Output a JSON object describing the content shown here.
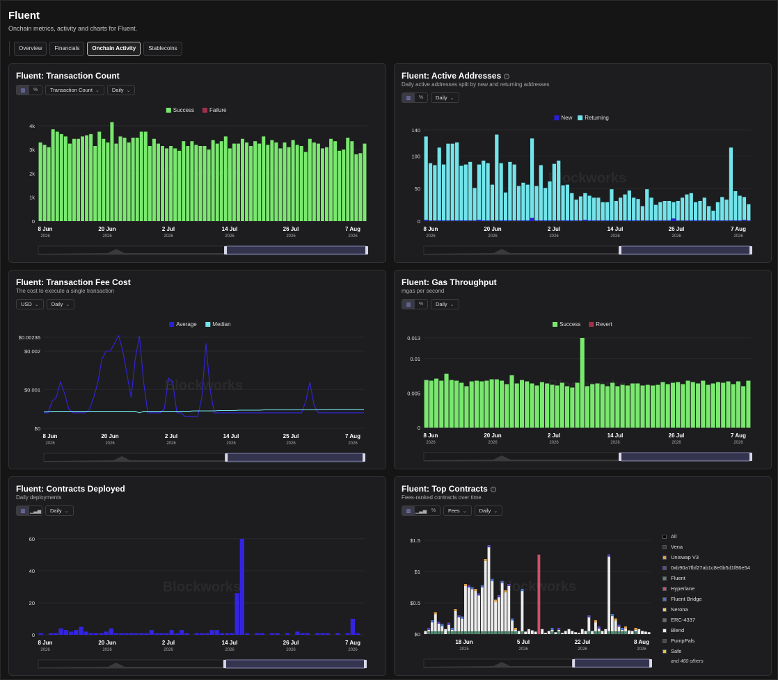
{
  "page": {
    "title": "Fluent",
    "subtitle": "Onchain metrics, activity and charts for Fluent."
  },
  "tabs": [
    "Overview",
    "Financials",
    "Onchain Activity",
    "Stablecoins"
  ],
  "active_tab": "Onchain Activity",
  "watermark": "Blockworks",
  "charts": {
    "tx_count": {
      "title": "Fluent: Transaction Count",
      "dropdowns": [
        "Transaction Count",
        "Daily"
      ],
      "legend": [
        {
          "label": "Success",
          "color": "#7ae86f"
        },
        {
          "label": "Failure",
          "color": "#a12f4a"
        }
      ],
      "y_ticks": [
        "0",
        "1k",
        "2k",
        "3k",
        "4k"
      ],
      "x_ticks": [
        {
          "d": "8 Jun",
          "y": "2026"
        },
        {
          "d": "20 Jun",
          "y": "2026"
        },
        {
          "d": "2 Jul",
          "y": "2026"
        },
        {
          "d": "14 Jul",
          "y": "2026"
        },
        {
          "d": "26 Jul",
          "y": "2026"
        },
        {
          "d": "7 Aug",
          "y": "2026"
        }
      ]
    },
    "active_addresses": {
      "title": "Fluent: Active Addresses",
      "subtitle": "Daily active addresses split by new and returning addresses",
      "dropdowns": [
        "Daily"
      ],
      "legend": [
        {
          "label": "New",
          "color": "#2a1fd6"
        },
        {
          "label": "Returning",
          "color": "#72e4ea"
        }
      ],
      "y_ticks": [
        "0",
        "50",
        "100",
        "140"
      ],
      "x_ticks": [
        {
          "d": "8 Jun",
          "y": "2026"
        },
        {
          "d": "20 Jun",
          "y": "2026"
        },
        {
          "d": "2 Jul",
          "y": "2026"
        },
        {
          "d": "14 Jul",
          "y": "2026"
        },
        {
          "d": "26 Jul",
          "y": "2026"
        },
        {
          "d": "7 Aug",
          "y": "2026"
        }
      ]
    },
    "fee_cost": {
      "title": "Fluent: Transaction Fee Cost",
      "subtitle": "The cost to execute a single transaction",
      "dropdowns": [
        "USD",
        "Daily"
      ],
      "legend": [
        {
          "label": "Average",
          "color": "#2a1fd6"
        },
        {
          "label": "Median",
          "color": "#72e4ea"
        }
      ],
      "y_ticks": [
        "$0",
        "$0.001",
        "$0.002",
        "$0.00236"
      ],
      "x_ticks": [
        {
          "d": "8 Jun",
          "y": "2026"
        },
        {
          "d": "20 Jun",
          "y": "2026"
        },
        {
          "d": "2 Jul",
          "y": "2026"
        },
        {
          "d": "14 Jul",
          "y": "2026"
        },
        {
          "d": "25 Jul",
          "y": "2026"
        },
        {
          "d": "7 Aug",
          "y": "2026"
        }
      ]
    },
    "gas": {
      "title": "Fluent: Gas Throughput",
      "subtitle": "mgas per second",
      "dropdowns": [
        "Daily"
      ],
      "legend": [
        {
          "label": "Success",
          "color": "#7ae86f"
        },
        {
          "label": "Revert",
          "color": "#a12f4a"
        }
      ],
      "y_ticks": [
        "0",
        "0.005",
        "0.01",
        "0.013"
      ],
      "x_ticks": [
        {
          "d": "8 Jun",
          "y": "2026"
        },
        {
          "d": "20 Jun",
          "y": "2026"
        },
        {
          "d": "2 Jul",
          "y": "2026"
        },
        {
          "d": "14 Jul",
          "y": "2026"
        },
        {
          "d": "26 Jul",
          "y": "2026"
        },
        {
          "d": "7 Aug",
          "y": "2026"
        }
      ]
    },
    "contracts": {
      "title": "Fluent: Contracts Deployed",
      "subtitle": "Daily deployments",
      "dropdowns": [
        "Daily"
      ],
      "y_ticks": [
        "0",
        "20",
        "40",
        "60"
      ],
      "x_ticks": [
        {
          "d": "8 Jun",
          "y": "2026"
        },
        {
          "d": "20 Jun",
          "y": "2026"
        },
        {
          "d": "2 Jul",
          "y": "2026"
        },
        {
          "d": "14 Jul",
          "y": "2026"
        },
        {
          "d": "26 Jul",
          "y": "2026"
        },
        {
          "d": "7 Aug",
          "y": "2026"
        }
      ]
    },
    "top_contracts": {
      "title": "Fluent: Top Contracts",
      "subtitle": "Fees-ranked contracts over time",
      "dropdowns": [
        "Fees",
        "Daily"
      ],
      "y_ticks": [
        "$0",
        "$0.5",
        "$1",
        "$1.5"
      ],
      "x_ticks": [
        {
          "d": "18 Jun",
          "y": "2025"
        },
        {
          "d": "5 Jul",
          "y": "2026"
        },
        {
          "d": "22 Jul",
          "y": "2026"
        },
        {
          "d": "8 Aug",
          "y": "2026"
        }
      ],
      "legend": [
        {
          "label": "All",
          "color": "#000000"
        },
        {
          "label": "Vena",
          "color": "#3b3b3b"
        },
        {
          "label": "Uniswap V3",
          "color": "#e3a24a"
        },
        {
          "label": "0xb90a7fbf27ab1c8e0b5d1f86e54",
          "color": "#5a3fc8"
        },
        {
          "label": "Fluent",
          "color": "#4e8a6e"
        },
        {
          "label": "Hyperlane",
          "color": "#d0506a"
        },
        {
          "label": "Fluent Bridge",
          "color": "#3f74d8"
        },
        {
          "label": "Nerona",
          "color": "#f2c96a"
        },
        {
          "label": "ERC-4337",
          "color": "#6a6a6a"
        },
        {
          "label": "Blend",
          "color": "#ececec"
        },
        {
          "label": "PumpPals",
          "color": "#4a4a4a"
        },
        {
          "label": "Safe",
          "color": "#e6c23a"
        }
      ],
      "more": "and 460 others"
    }
  },
  "chart_data": [
    {
      "type": "bar",
      "title": "Fluent: Transaction Count",
      "series": [
        {
          "name": "Success",
          "values": [
            3300,
            3200,
            3100,
            3850,
            3750,
            3650,
            3550,
            3250,
            3450,
            3450,
            3550,
            3600,
            3650,
            3150,
            3750,
            3450,
            3300,
            4150,
            3250,
            3550,
            3500,
            3300,
            3500,
            3500,
            3750,
            3750,
            3150,
            3450,
            3250,
            3150,
            3050,
            3150,
            3050,
            2950,
            3350,
            3150,
            3350,
            3200,
            3150,
            3150,
            3000,
            3400,
            3250,
            3350,
            3550,
            3050,
            3250,
            3250,
            3450,
            3300,
            3150,
            3350,
            3250,
            3550,
            3200,
            3400,
            3300,
            3050,
            3300,
            3100,
            3400,
            3200,
            3150,
            2900,
            3450,
            3300,
            3250,
            3050,
            3100,
            3450,
            3350,
            2950,
            3000,
            3500,
            3350,
            2800,
            2850,
            3250
          ]
        },
        {
          "name": "Failure",
          "values": [
            0,
            0,
            0,
            0,
            0,
            0,
            0,
            0,
            0,
            0,
            0,
            0,
            0,
            0,
            0,
            0,
            0,
            0,
            0,
            0,
            0,
            0,
            0,
            0,
            0,
            0,
            0,
            0,
            0,
            0,
            0,
            0,
            0,
            0,
            0,
            0,
            0,
            0,
            0,
            0,
            0,
            0,
            0,
            0,
            0,
            0,
            0,
            0,
            0,
            0,
            0,
            0,
            0,
            0,
            0,
            0,
            0,
            0,
            0,
            0,
            0,
            0,
            0,
            0,
            0,
            0,
            0,
            0,
            0,
            0,
            0,
            0,
            0,
            0,
            0,
            0,
            0,
            0
          ]
        }
      ],
      "ylim": [
        0,
        4200
      ]
    },
    {
      "type": "bar",
      "title": "Fluent: Active Addresses",
      "series": [
        {
          "name": "New",
          "values": [
            2,
            1,
            1,
            1,
            1,
            1,
            1,
            1,
            1,
            1,
            1,
            1,
            2,
            1,
            1,
            1,
            1,
            1,
            1,
            1,
            1,
            1,
            1,
            1,
            5,
            1,
            1,
            1,
            1,
            1,
            1,
            1,
            1,
            1,
            1,
            1,
            2,
            1,
            1,
            1,
            1,
            1,
            1,
            1,
            1,
            1,
            1,
            1,
            1,
            1,
            1,
            1,
            1,
            1,
            1,
            1,
            4,
            1,
            1,
            1,
            1,
            1,
            1,
            1,
            1,
            1,
            1,
            1,
            1,
            1,
            1,
            1,
            2,
            1
          ]
        },
        {
          "name": "Returning",
          "values": [
            128,
            88,
            85,
            112,
            86,
            118,
            118,
            120,
            84,
            86,
            90,
            50,
            85,
            92,
            88,
            55,
            132,
            88,
            43,
            90,
            86,
            53,
            58,
            55,
            122,
            53,
            85,
            50,
            60,
            87,
            92,
            54,
            55,
            42,
            32,
            37,
            41,
            38,
            35,
            35,
            28,
            28,
            48,
            30,
            35,
            40,
            46,
            35,
            33,
            22,
            48,
            35,
            24,
            28,
            30,
            30,
            25,
            30,
            35,
            40,
            42,
            28,
            30,
            35,
            22,
            15,
            28,
            36,
            32,
            112,
            45,
            38,
            35,
            25
          ]
        }
      ],
      "ylim": [
        0,
        140
      ]
    },
    {
      "type": "line",
      "title": "Fluent: Transaction Fee Cost",
      "series": [
        {
          "name": "Average",
          "values": [
            0.0004,
            0.0004,
            0.0007,
            0.0008,
            0.0012,
            0.0009,
            0.0005,
            0.0004,
            0.0004,
            0.0004,
            0.0004,
            0.0005,
            0.0008,
            0.0012,
            0.0018,
            0.002,
            0.002,
            0.0022,
            0.0024,
            0.002,
            0.0014,
            0.0008,
            0.0018,
            0.0024,
            0.0012,
            0.0004,
            0.0004,
            0.0004,
            0.0004,
            0.0005,
            0.0013,
            0.0012,
            0.0004,
            0.0004,
            0.0003,
            0.0003,
            0.0003,
            0.0003,
            0.0008,
            0.0022,
            0.001,
            0.0004,
            0.0004,
            0.0004,
            0.0004,
            0.0004,
            0.0004,
            0.0004,
            0.0004,
            0.0004,
            0.0004,
            0.0004,
            0.0004,
            0.0004,
            0.0004,
            0.0004,
            0.0004,
            0.0004,
            0.0004,
            0.0004,
            0.0004,
            0.0004,
            0.0004,
            0.0007,
            0.0012,
            0.0006,
            0.0004,
            0.0004,
            0.0004,
            0.0004,
            0.0004,
            0.0004,
            0.0004,
            0.0004,
            0.0004,
            0.0004,
            0.0004,
            0.0004
          ]
        },
        {
          "name": "Median",
          "values": [
            0.00043,
            0.00043,
            0.00044,
            0.00044,
            0.00044,
            0.00044,
            0.00044,
            0.00044,
            0.00044,
            0.00044,
            0.00044,
            0.00044,
            0.00044,
            0.00044,
            0.00044,
            0.00044,
            0.00044,
            0.00044,
            0.00044,
            0.00044,
            0.00044,
            0.00044,
            0.00044,
            0.0004,
            0.00044,
            0.00044,
            0.00044,
            0.00044,
            0.00044,
            0.00044,
            0.00044,
            0.00044,
            0.00044,
            0.00044,
            0.00044,
            0.00044,
            0.00045,
            0.00045,
            0.00045,
            0.00045,
            0.00045,
            0.00045,
            0.00046,
            0.00046,
            0.00046,
            0.00046,
            0.00046,
            0.00047,
            0.00047,
            0.00047,
            0.00047,
            0.00047,
            0.00047,
            0.00048,
            0.00048,
            0.00048,
            0.00048,
            0.00048,
            0.00048,
            0.00048,
            0.00048,
            0.00048,
            0.00048,
            0.00048,
            0.00048,
            0.00048,
            0.00048,
            0.00049,
            0.00049,
            0.00049,
            0.00049,
            0.00049,
            0.00049,
            0.00049,
            0.00049,
            0.00049,
            0.00049,
            0.00049
          ]
        }
      ],
      "ylim": [
        0,
        0.00236
      ]
    },
    {
      "type": "bar",
      "title": "Fluent: Gas Throughput",
      "series": [
        {
          "name": "Success",
          "values": [
            0.0069,
            0.0068,
            0.0071,
            0.0068,
            0.0078,
            0.0069,
            0.0068,
            0.0065,
            0.006,
            0.0067,
            0.0068,
            0.0067,
            0.0068,
            0.007,
            0.007,
            0.0068,
            0.0063,
            0.0076,
            0.0064,
            0.0069,
            0.0067,
            0.0064,
            0.0061,
            0.0066,
            0.0064,
            0.0062,
            0.0061,
            0.0065,
            0.006,
            0.0058,
            0.0065,
            0.013,
            0.006,
            0.0063,
            0.0064,
            0.0063,
            0.006,
            0.0065,
            0.006,
            0.0062,
            0.0061,
            0.0064,
            0.0064,
            0.0061,
            0.0062,
            0.0061,
            0.0062,
            0.0066,
            0.0063,
            0.0065,
            0.0066,
            0.0063,
            0.0068,
            0.0066,
            0.0064,
            0.0068,
            0.0062,
            0.0064,
            0.0066,
            0.0065,
            0.0067,
            0.0063,
            0.0067,
            0.006,
            0.0068
          ],
          "ylim": [
            0,
            0.013
          ]
        },
        {
          "name": "Revert",
          "values": [
            0,
            0,
            0,
            0,
            0,
            0,
            0,
            0,
            0,
            0,
            0,
            0,
            0,
            0,
            0,
            0,
            0,
            0,
            0,
            0,
            0,
            0,
            0,
            0,
            0,
            0,
            0,
            0,
            0,
            0,
            0,
            0,
            0,
            0,
            0,
            0,
            0,
            0,
            0,
            0,
            0,
            0,
            0,
            0,
            0,
            0,
            0,
            0,
            0,
            0,
            0,
            0,
            0,
            0,
            0,
            0,
            0,
            0,
            0,
            0,
            0,
            0,
            0,
            0,
            0
          ]
        }
      ],
      "ylim": [
        0,
        0.013
      ]
    },
    {
      "type": "bar",
      "title": "Fluent: Contracts Deployed",
      "values": [
        1,
        0,
        1,
        1,
        4,
        3,
        2,
        3,
        5,
        2,
        1,
        1,
        1,
        2,
        4,
        1,
        1,
        1,
        1,
        1,
        1,
        1,
        3,
        1,
        1,
        1,
        3,
        1,
        3,
        1,
        0,
        1,
        1,
        1,
        3,
        3,
        1,
        1,
        1,
        26,
        60,
        1,
        0,
        1,
        1,
        0,
        1,
        1,
        0,
        1,
        0,
        2,
        1,
        1,
        0,
        1,
        1,
        1,
        0,
        1,
        0,
        1,
        10,
        1,
        0
      ],
      "ylim": [
        0,
        63
      ]
    },
    {
      "type": "bar",
      "title": "Fluent: Top Contracts",
      "values": [
        0.05,
        0.1,
        0.22,
        0.35,
        0.2,
        0.16,
        0.08,
        0.18,
        0.1,
        0.4,
        0.3,
        0.28,
        0.8,
        0.78,
        0.75,
        0.72,
        0.65,
        0.78,
        1.2,
        1.42,
        0.88,
        0.55,
        0.62,
        0.85,
        0.7,
        0.8,
        0.25,
        0.1,
        0.05,
        0.72,
        0.04,
        0.08,
        0.06,
        0.04,
        1.27,
        0.08,
        0.02,
        0.05,
        0.1,
        0.03,
        0.1,
        0.02,
        0.05,
        0.08,
        0.05,
        0.03,
        0.02,
        0.08,
        0.05,
        0.3,
        0.05,
        0.22,
        0.12,
        0.05,
        0.08,
        1.27,
        0.32,
        0.25,
        0.15,
        0.1,
        0.12,
        0.06,
        0.05,
        0.1,
        0.08,
        0.05,
        0.04,
        0.03
      ],
      "ylim": [
        0,
        1.6
      ]
    }
  ]
}
